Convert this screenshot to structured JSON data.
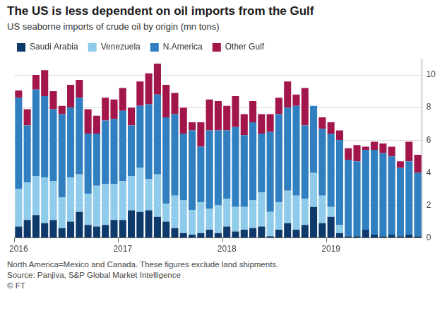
{
  "chart_data": {
    "type": "bar",
    "title": "The US is less dependent on oil imports from the Gulf",
    "subtitle": "US seaborne imports of crude oil by origin (mn tons)",
    "note": "North America=Mexico and Canada. These figures exclude land shipments.",
    "source": "Source: Panjiva, S&P Global Market Intelligence",
    "credit": "© FT",
    "categories": [
      "2016",
      null,
      null,
      null,
      null,
      null,
      null,
      null,
      null,
      null,
      null,
      null,
      "2017",
      null,
      null,
      null,
      null,
      null,
      null,
      null,
      null,
      null,
      null,
      null,
      "2018",
      null,
      null,
      null,
      null,
      null,
      null,
      null,
      null,
      null,
      null,
      null,
      "2019",
      null,
      null,
      null,
      null,
      null,
      null,
      null,
      null,
      null,
      null
    ],
    "series": [
      {
        "name": "Saudi Arabia",
        "color": "#0d3a6b",
        "values": [
          0.7,
          1.1,
          1.4,
          0.9,
          1.1,
          0.6,
          1.0,
          1.6,
          0.8,
          0.7,
          0.8,
          1.1,
          1.1,
          1.7,
          1.6,
          1.7,
          1.3,
          1.0,
          0.6,
          0.3,
          0.2,
          0.3,
          0.5,
          0.3,
          0.7,
          0.4,
          0.5,
          0.6,
          0.7,
          0.1,
          0.5,
          0.9,
          0.5,
          0.8,
          1.9,
          0.9,
          1.3,
          0.3,
          0.1,
          0.1,
          0.5,
          0.2,
          0.1,
          0.2,
          0.1,
          0.2,
          0.1
        ]
      },
      {
        "name": "Venezuela",
        "color": "#8fcbea",
        "values": [
          2.3,
          2.3,
          2.4,
          2.8,
          2.4,
          1.9,
          2.7,
          2.3,
          1.9,
          2.5,
          2.5,
          2.2,
          2.4,
          2.1,
          2.7,
          1.9,
          2.6,
          1.1,
          2.0,
          2.0,
          1.5,
          1.9,
          1.3,
          1.7,
          1.7,
          1.5,
          1.4,
          1.7,
          2.1,
          1.5,
          1.7,
          2.0,
          2.1,
          1.6,
          2.1,
          1.7,
          0.6,
          0.5,
          0,
          0,
          0,
          0,
          0,
          0,
          0,
          0,
          0
        ]
      },
      {
        "name": "N.America",
        "color": "#2f7fc1",
        "values": [
          5.6,
          3.5,
          5.3,
          5.0,
          4.4,
          5.1,
          4.3,
          4.7,
          3.7,
          3.2,
          3.9,
          4.0,
          4.3,
          3.1,
          3.8,
          4.6,
          4.9,
          5.3,
          5.0,
          4.1,
          4.9,
          3.4,
          4.8,
          4.6,
          4.2,
          4.9,
          4.4,
          4.8,
          3.6,
          4.9,
          5.4,
          5.1,
          5.5,
          4.5,
          4.1,
          4.1,
          4.5,
          5.2,
          4.7,
          4.6,
          4.9,
          5.2,
          5.1,
          4.8,
          4.2,
          4.5,
          3.9
        ]
      },
      {
        "name": "Other Gulf",
        "color": "#a3164c",
        "values": [
          0.45,
          1.0,
          0.9,
          1.6,
          1.1,
          0.5,
          1.4,
          1.1,
          1.5,
          1.1,
          1.4,
          1.2,
          1.4,
          1.1,
          1.5,
          1.9,
          1.9,
          2.0,
          1.3,
          1.6,
          0.5,
          1.5,
          1.9,
          1.8,
          1.5,
          1.9,
          1.3,
          1.3,
          1.2,
          1.1,
          1.0,
          1.6,
          0.7,
          2.3,
          0,
          0.7,
          0.7,
          0.6,
          0.7,
          1.0,
          0.2,
          0.5,
          0.6,
          0.6,
          0.4,
          1.2,
          1.1
        ]
      }
    ],
    "stacked": true,
    "ylim": [
      0,
      11
    ],
    "yticks": [
      0,
      2,
      4,
      6,
      8,
      10
    ],
    "grid": true,
    "legend": "top-left"
  }
}
